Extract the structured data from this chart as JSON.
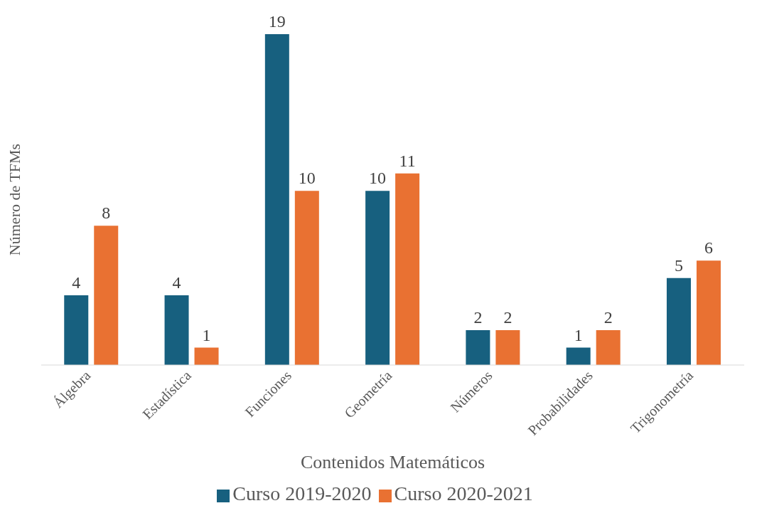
{
  "chart_data": {
    "type": "bar",
    "xlabel": "Contenidos Matemáticos",
    "ylabel": "Número de TFMs",
    "categories": [
      "Álgebra",
      "Estadística",
      "Funciones",
      "Geometría",
      "Números",
      "Probabilidades",
      "Trigonometría"
    ],
    "series": [
      {
        "name": "Curso 2019-2020",
        "color": "#17607f",
        "values": [
          4,
          4,
          19,
          10,
          2,
          1,
          5
        ]
      },
      {
        "name": "Curso 2020-2021",
        "color": "#e97132",
        "values": [
          8,
          1,
          10,
          11,
          2,
          2,
          6
        ]
      }
    ],
    "data_labels": true,
    "grid": false,
    "legend": "bottom"
  }
}
